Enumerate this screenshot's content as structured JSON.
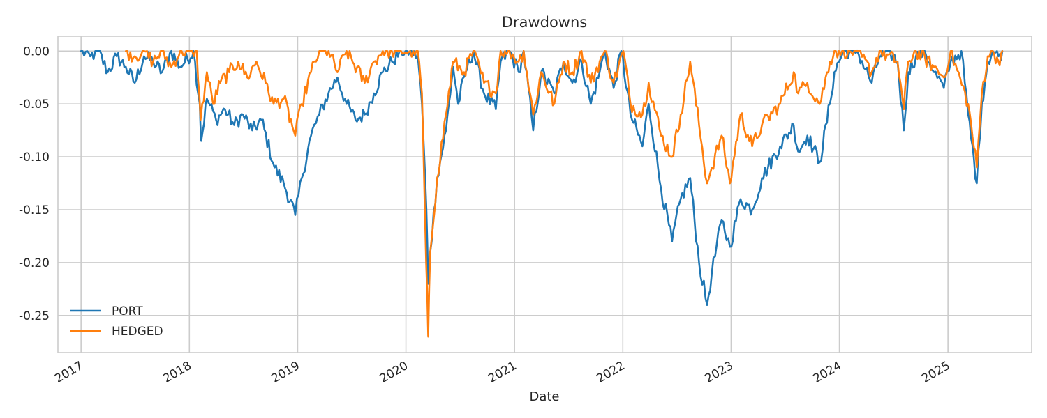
{
  "chart_data": {
    "type": "line",
    "title": "Drawdowns",
    "xlabel": "Date",
    "ylabel": "",
    "x_range": [
      "2016-10-15",
      "2025-10-10"
    ],
    "ylim": [
      -0.285,
      0.014
    ],
    "y_ticks": [
      0.0,
      -0.05,
      -0.1,
      -0.15,
      -0.2,
      -0.25
    ],
    "y_tick_labels": [
      "0.00",
      "-0.05",
      "-0.10",
      "-0.15",
      "-0.20",
      "-0.25"
    ],
    "x_ticks": [
      "2017-01-01",
      "2018-01-01",
      "2019-01-01",
      "2020-01-01",
      "2021-01-01",
      "2022-01-01",
      "2023-01-01",
      "2024-01-01",
      "2025-01-01"
    ],
    "x_tick_labels": [
      "2017",
      "2018",
      "2019",
      "2020",
      "2021",
      "2022",
      "2023",
      "2024",
      "2025"
    ],
    "grid": true,
    "legend_position": "lower-left",
    "series": [
      {
        "name": "PORT",
        "color": "#1f77b4",
        "points": [
          [
            "2017-01-01",
            0.0
          ],
          [
            "2017-02-01",
            -0.005
          ],
          [
            "2017-03-01",
            0.0
          ],
          [
            "2017-04-01",
            -0.02
          ],
          [
            "2017-05-01",
            -0.005
          ],
          [
            "2017-06-01",
            -0.015
          ],
          [
            "2017-07-01",
            -0.03
          ],
          [
            "2017-08-01",
            -0.005
          ],
          [
            "2017-09-01",
            -0.01
          ],
          [
            "2017-10-01",
            -0.02
          ],
          [
            "2017-11-01",
            0.0
          ],
          [
            "2017-12-01",
            -0.015
          ],
          [
            "2018-01-15",
            0.0
          ],
          [
            "2018-02-05",
            -0.05
          ],
          [
            "2018-02-10",
            -0.085
          ],
          [
            "2018-03-01",
            -0.045
          ],
          [
            "2018-04-01",
            -0.065
          ],
          [
            "2018-05-01",
            -0.055
          ],
          [
            "2018-06-01",
            -0.07
          ],
          [
            "2018-07-01",
            -0.06
          ],
          [
            "2018-08-01",
            -0.075
          ],
          [
            "2018-09-01",
            -0.065
          ],
          [
            "2018-10-15",
            -0.11
          ],
          [
            "2018-11-15",
            -0.125
          ],
          [
            "2018-12-24",
            -0.155
          ],
          [
            "2019-01-15",
            -0.12
          ],
          [
            "2019-02-15",
            -0.08
          ],
          [
            "2019-03-15",
            -0.06
          ],
          [
            "2019-04-15",
            -0.04
          ],
          [
            "2019-05-15",
            -0.025
          ],
          [
            "2019-06-15",
            -0.05
          ],
          [
            "2019-07-15",
            -0.065
          ],
          [
            "2019-08-15",
            -0.06
          ],
          [
            "2019-09-15",
            -0.04
          ],
          [
            "2019-10-15",
            -0.02
          ],
          [
            "2019-11-15",
            -0.01
          ],
          [
            "2019-12-15",
            0.0
          ],
          [
            "2020-01-20",
            0.0
          ],
          [
            "2020-02-10",
            -0.005
          ],
          [
            "2020-02-24",
            -0.05
          ],
          [
            "2020-03-10",
            -0.15
          ],
          [
            "2020-03-16",
            -0.22
          ],
          [
            "2020-03-23",
            -0.19
          ],
          [
            "2020-04-15",
            -0.12
          ],
          [
            "2020-05-15",
            -0.075
          ],
          [
            "2020-06-08",
            -0.015
          ],
          [
            "2020-06-25",
            -0.05
          ],
          [
            "2020-07-20",
            -0.02
          ],
          [
            "2020-08-15",
            0.0
          ],
          [
            "2020-09-20",
            -0.04
          ],
          [
            "2020-10-30",
            -0.055
          ],
          [
            "2020-11-15",
            -0.01
          ],
          [
            "2020-12-15",
            0.0
          ],
          [
            "2021-01-15",
            -0.02
          ],
          [
            "2021-02-01",
            0.0
          ],
          [
            "2021-03-05",
            -0.075
          ],
          [
            "2021-04-01",
            -0.02
          ],
          [
            "2021-05-15",
            -0.04
          ],
          [
            "2021-06-15",
            -0.01
          ],
          [
            "2021-07-15",
            -0.03
          ],
          [
            "2021-08-15",
            -0.01
          ],
          [
            "2021-09-15",
            -0.05
          ],
          [
            "2021-10-15",
            -0.02
          ],
          [
            "2021-11-01",
            0.0
          ],
          [
            "2021-12-01",
            -0.035
          ],
          [
            "2021-12-27",
            0.0
          ],
          [
            "2022-01-27",
            -0.06
          ],
          [
            "2022-03-08",
            -0.09
          ],
          [
            "2022-03-29",
            -0.05
          ],
          [
            "2022-05-10",
            -0.13
          ],
          [
            "2022-06-16",
            -0.18
          ],
          [
            "2022-07-15",
            -0.14
          ],
          [
            "2022-08-16",
            -0.12
          ],
          [
            "2022-09-15",
            -0.2
          ],
          [
            "2022-10-12",
            -0.24
          ],
          [
            "2022-10-28",
            -0.21
          ],
          [
            "2022-11-30",
            -0.16
          ],
          [
            "2022-12-28",
            -0.185
          ],
          [
            "2023-02-02",
            -0.14
          ],
          [
            "2023-03-13",
            -0.15
          ],
          [
            "2023-04-15",
            -0.12
          ],
          [
            "2023-06-15",
            -0.09
          ],
          [
            "2023-07-31",
            -0.07
          ],
          [
            "2023-08-15",
            -0.095
          ],
          [
            "2023-09-15",
            -0.08
          ],
          [
            "2023-10-27",
            -0.105
          ],
          [
            "2023-11-30",
            -0.05
          ],
          [
            "2023-12-15",
            -0.02
          ],
          [
            "2024-01-15",
            0.0
          ],
          [
            "2024-03-01",
            0.0
          ],
          [
            "2024-04-19",
            -0.03
          ],
          [
            "2024-05-15",
            -0.005
          ],
          [
            "2024-06-15",
            0.0
          ],
          [
            "2024-07-15",
            -0.01
          ],
          [
            "2024-08-05",
            -0.075
          ],
          [
            "2024-08-20",
            -0.02
          ],
          [
            "2024-09-15",
            -0.005
          ],
          [
            "2024-10-15",
            0.0
          ],
          [
            "2024-11-15",
            -0.02
          ],
          [
            "2024-12-18",
            -0.035
          ],
          [
            "2025-01-10",
            -0.01
          ],
          [
            "2025-02-15",
            0.0
          ],
          [
            "2025-03-10",
            -0.06
          ],
          [
            "2025-04-08",
            -0.125
          ],
          [
            "2025-04-25",
            -0.05
          ],
          [
            "2025-05-15",
            -0.01
          ],
          [
            "2025-06-01",
            0.0
          ],
          [
            "2025-06-20",
            -0.005
          ],
          [
            "2025-07-03",
            0.0
          ]
        ]
      },
      {
        "name": "HEDGED",
        "color": "#ff7f0e",
        "points": [
          [
            "2017-06-01",
            0.0
          ],
          [
            "2017-07-01",
            -0.005
          ],
          [
            "2017-08-01",
            0.0
          ],
          [
            "2017-09-01",
            -0.01
          ],
          [
            "2017-10-01",
            0.0
          ],
          [
            "2017-11-01",
            -0.015
          ],
          [
            "2017-12-01",
            0.0
          ],
          [
            "2018-01-26",
            0.0
          ],
          [
            "2018-02-08",
            -0.065
          ],
          [
            "2018-03-01",
            -0.02
          ],
          [
            "2018-03-22",
            -0.05
          ],
          [
            "2018-04-15",
            -0.03
          ],
          [
            "2018-05-15",
            -0.02
          ],
          [
            "2018-06-15",
            -0.01
          ],
          [
            "2018-07-15",
            -0.025
          ],
          [
            "2018-08-15",
            -0.01
          ],
          [
            "2018-09-15",
            -0.03
          ],
          [
            "2018-10-12",
            -0.05
          ],
          [
            "2018-11-15",
            -0.045
          ],
          [
            "2018-12-24",
            -0.08
          ],
          [
            "2019-01-15",
            -0.05
          ],
          [
            "2019-02-15",
            -0.02
          ],
          [
            "2019-03-15",
            0.0
          ],
          [
            "2019-04-15",
            0.0
          ],
          [
            "2019-05-15",
            -0.02
          ],
          [
            "2019-06-15",
            0.0
          ],
          [
            "2019-08-15",
            -0.03
          ],
          [
            "2019-09-15",
            -0.01
          ],
          [
            "2019-10-15",
            0.0
          ],
          [
            "2019-12-15",
            0.0
          ],
          [
            "2020-02-10",
            0.0
          ],
          [
            "2020-02-24",
            -0.04
          ],
          [
            "2020-03-09",
            -0.2
          ],
          [
            "2020-03-16",
            -0.27
          ],
          [
            "2020-03-23",
            -0.19
          ],
          [
            "2020-04-15",
            -0.12
          ],
          [
            "2020-05-15",
            -0.06
          ],
          [
            "2020-06-08",
            -0.01
          ],
          [
            "2020-07-15",
            -0.02
          ],
          [
            "2020-08-15",
            0.0
          ],
          [
            "2020-09-20",
            -0.03
          ],
          [
            "2020-10-30",
            -0.04
          ],
          [
            "2020-11-15",
            0.0
          ],
          [
            "2020-12-15",
            0.0
          ],
          [
            "2021-01-15",
            -0.01
          ],
          [
            "2021-02-01",
            0.0
          ],
          [
            "2021-03-05",
            -0.06
          ],
          [
            "2021-04-01",
            -0.02
          ],
          [
            "2021-05-15",
            -0.05
          ],
          [
            "2021-06-15",
            -0.01
          ],
          [
            "2021-07-15",
            -0.02
          ],
          [
            "2021-08-15",
            0.0
          ],
          [
            "2021-09-15",
            -0.03
          ],
          [
            "2021-10-15",
            -0.01
          ],
          [
            "2021-11-01",
            0.0
          ],
          [
            "2021-12-01",
            -0.03
          ],
          [
            "2022-01-03",
            0.0
          ],
          [
            "2022-01-27",
            -0.05
          ],
          [
            "2022-03-08",
            -0.06
          ],
          [
            "2022-03-29",
            -0.03
          ],
          [
            "2022-05-10",
            -0.08
          ],
          [
            "2022-06-16",
            -0.1
          ],
          [
            "2022-07-15",
            -0.06
          ],
          [
            "2022-08-16",
            -0.01
          ],
          [
            "2022-09-15",
            -0.07
          ],
          [
            "2022-10-12",
            -0.125
          ],
          [
            "2022-10-28",
            -0.11
          ],
          [
            "2022-11-30",
            -0.08
          ],
          [
            "2022-12-28",
            -0.125
          ],
          [
            "2023-02-02",
            -0.06
          ],
          [
            "2023-03-13",
            -0.09
          ],
          [
            "2023-04-15",
            -0.07
          ],
          [
            "2023-06-15",
            -0.05
          ],
          [
            "2023-07-31",
            -0.02
          ],
          [
            "2023-08-15",
            -0.04
          ],
          [
            "2023-09-15",
            -0.03
          ],
          [
            "2023-10-27",
            -0.05
          ],
          [
            "2023-11-30",
            -0.01
          ],
          [
            "2023-12-15",
            0.0
          ],
          [
            "2024-01-15",
            0.0
          ],
          [
            "2024-03-01",
            0.0
          ],
          [
            "2024-04-19",
            -0.02
          ],
          [
            "2024-05-15",
            0.0
          ],
          [
            "2024-07-15",
            -0.01
          ],
          [
            "2024-08-05",
            -0.055
          ],
          [
            "2024-08-20",
            -0.01
          ],
          [
            "2024-09-15",
            0.0
          ],
          [
            "2024-11-15",
            -0.015
          ],
          [
            "2024-12-18",
            -0.025
          ],
          [
            "2025-01-10",
            0.0
          ],
          [
            "2025-03-10",
            -0.05
          ],
          [
            "2025-04-08",
            -0.11
          ],
          [
            "2025-04-25",
            -0.04
          ],
          [
            "2025-05-15",
            -0.005
          ],
          [
            "2025-06-01",
            0.0
          ],
          [
            "2025-06-20",
            -0.01
          ],
          [
            "2025-07-03",
            0.0
          ]
        ]
      }
    ]
  }
}
